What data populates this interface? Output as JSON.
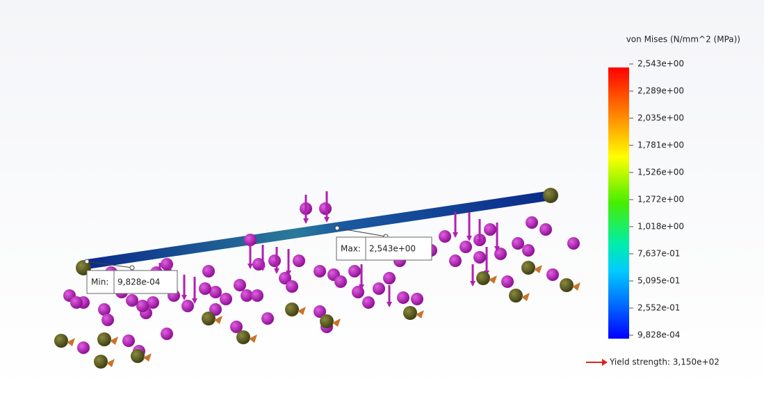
{
  "legend": {
    "title": "von Mises (N/mm^2 (MPa))",
    "ticks": [
      "2,543e+00",
      "2,289e+00",
      "2,035e+00",
      "1,781e+00",
      "1,526e+00",
      "1,272e+00",
      "1,018e+00",
      "7,637e-01",
      "5,095e-01",
      "2,552e-01",
      "9,828e-04"
    ]
  },
  "probes": {
    "min": {
      "label": "Min:",
      "value": "9,828e-04"
    },
    "max": {
      "label": "Max:",
      "value": "2,543e+00"
    }
  },
  "yield": {
    "label": "Yield strength: 3,150e+02"
  }
}
